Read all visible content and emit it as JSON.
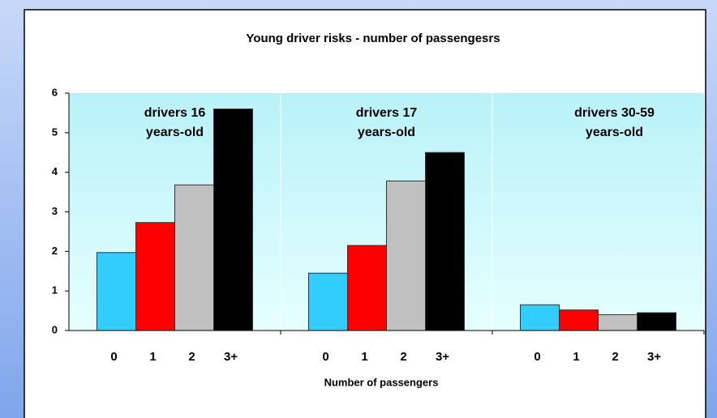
{
  "chart_data": {
    "type": "bar",
    "title": "Young driver risks - number of passengesrs",
    "x_label": "Number of passengers",
    "categories": [
      "drivers 16 years-old",
      "drivers 17 years-old",
      "drivers 30-59 years-old"
    ],
    "series": [
      {
        "name": "0",
        "color": "#33ccff",
        "values": [
          1.97,
          1.45,
          0.65
        ]
      },
      {
        "name": "1",
        "color": "#ff0000",
        "values": [
          2.73,
          2.15,
          0.52
        ]
      },
      {
        "name": "2",
        "color": "#c0c0c0",
        "values": [
          3.68,
          3.78,
          0.4
        ]
      },
      {
        "name": "3+",
        "color": "#000000",
        "values": [
          5.6,
          4.5,
          0.45
        ]
      }
    ],
    "ylim": [
      0,
      6
    ],
    "yticks": [
      0,
      1,
      2,
      3,
      4,
      5,
      6
    ]
  }
}
